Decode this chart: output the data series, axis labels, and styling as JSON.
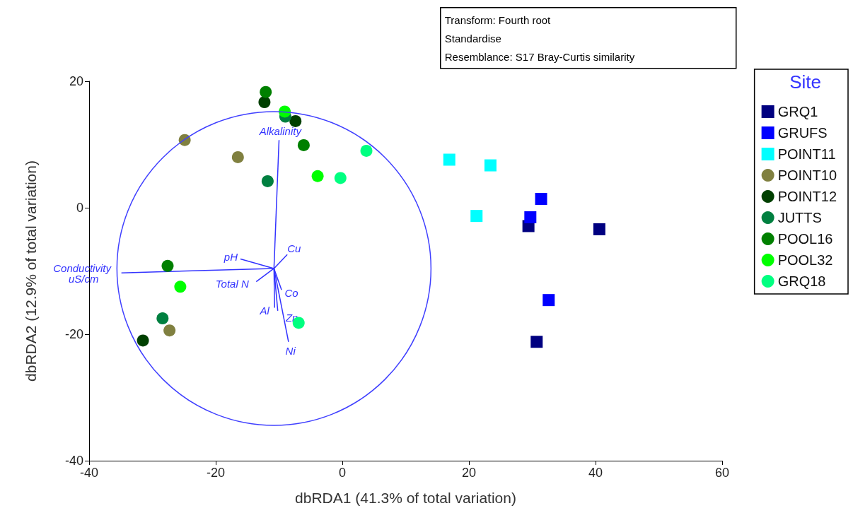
{
  "chart_data": {
    "type": "scatter",
    "xlabel": "dbRDA1 (41.3% of total variation)",
    "ylabel": "dbRDA2 (12.9% of total variation)",
    "xlim": [
      -40,
      60
    ],
    "xticks": [
      -40,
      -20,
      0,
      20,
      40,
      60
    ],
    "ylim": [
      -40,
      20
    ],
    "yticks": [
      -40,
      -20,
      0,
      20
    ],
    "grid": false,
    "legend": "right",
    "legend_title": "Site",
    "annotations": [
      "Transform: Fourth root",
      "Standardise",
      "Resemblance: S17 Bray-Curtis similarity"
    ],
    "series": [
      {
        "name": "GRQ1",
        "color": "#000080",
        "marker": "square",
        "x": [
          29.4,
          40.6,
          30.7
        ],
        "values": [
          -2.9,
          -3.4,
          -21.2
        ]
      },
      {
        "name": "GRUFS",
        "color": "#0000ff",
        "marker": "square",
        "x": [
          31.4,
          29.7,
          32.6
        ],
        "values": [
          1.4,
          -1.5,
          -14.6
        ]
      },
      {
        "name": "POINT11",
        "color": "#00ffff",
        "marker": "square",
        "x": [
          16.9,
          23.4,
          21.2
        ],
        "values": [
          7.6,
          6.7,
          -1.3
        ]
      },
      {
        "name": "POINT10",
        "color": "#808040",
        "marker": "circle",
        "x": [
          -24.9,
          -16.5,
          -27.3
        ],
        "values": [
          10.7,
          8.0,
          -19.4
        ]
      },
      {
        "name": "POINT12",
        "color": "#004000",
        "marker": "circle",
        "x": [
          -12.3,
          -7.4,
          -31.5
        ],
        "values": [
          16.7,
          13.7,
          -21.0
        ]
      },
      {
        "name": "JUTTS",
        "color": "#008040",
        "marker": "circle",
        "x": [
          -9.0,
          -11.8,
          -28.4
        ],
        "values": [
          14.4,
          4.2,
          -17.5
        ]
      },
      {
        "name": "POOL16",
        "color": "#008000",
        "marker": "circle",
        "x": [
          -12.1,
          -6.1,
          -27.6
        ],
        "values": [
          18.3,
          9.9,
          -9.2
        ]
      },
      {
        "name": "POOL32",
        "color": "#00ff00",
        "marker": "circle",
        "x": [
          -9.1,
          -3.9,
          -25.6
        ],
        "values": [
          15.2,
          5.0,
          -12.5
        ]
      },
      {
        "name": "GRQ18",
        "color": "#00ff80",
        "marker": "circle",
        "x": [
          3.8,
          -0.3,
          -6.9
        ],
        "values": [
          9.0,
          4.7,
          -18.2
        ]
      },
      {
        "type": "line",
        "name": "Alkalinity",
        "color": "#3333ff",
        "x": [
          -10.8,
          -10.0
        ],
        "values": [
          -9.6,
          10.7
        ]
      },
      {
        "type": "line",
        "name": "Conductivity uS/cm",
        "color": "#3333ff",
        "x": [
          -10.8,
          -34.9
        ],
        "values": [
          -9.6,
          -10.3
        ]
      },
      {
        "type": "line",
        "name": "pH",
        "color": "#3333ff",
        "x": [
          -10.8,
          -16.1
        ],
        "values": [
          -9.6,
          -8.1
        ]
      },
      {
        "type": "line",
        "name": "Cu",
        "color": "#3333ff",
        "x": [
          -10.8,
          -8.7
        ],
        "values": [
          -9.6,
          -7.4
        ]
      },
      {
        "type": "line",
        "name": "Total N",
        "color": "#3333ff",
        "x": [
          -10.8,
          -13.6
        ],
        "values": [
          -9.6,
          -11.7
        ]
      },
      {
        "type": "line",
        "name": "Al",
        "color": "#3333ff",
        "x": [
          -10.8,
          -10.7
        ],
        "values": [
          -9.6,
          -15.8
        ]
      },
      {
        "type": "line",
        "name": "Co",
        "color": "#3333ff",
        "x": [
          -10.8,
          -9.6
        ],
        "values": [
          -9.6,
          -13.0
        ]
      },
      {
        "type": "line",
        "name": "Zn",
        "color": "#3333ff",
        "x": [
          -10.8,
          -10.2
        ],
        "values": [
          -9.6,
          -16.3
        ]
      },
      {
        "type": "line",
        "name": "Ni",
        "color": "#3333ff",
        "x": [
          -10.8,
          -8.5
        ],
        "values": [
          -9.6,
          -21.2
        ]
      }
    ]
  }
}
